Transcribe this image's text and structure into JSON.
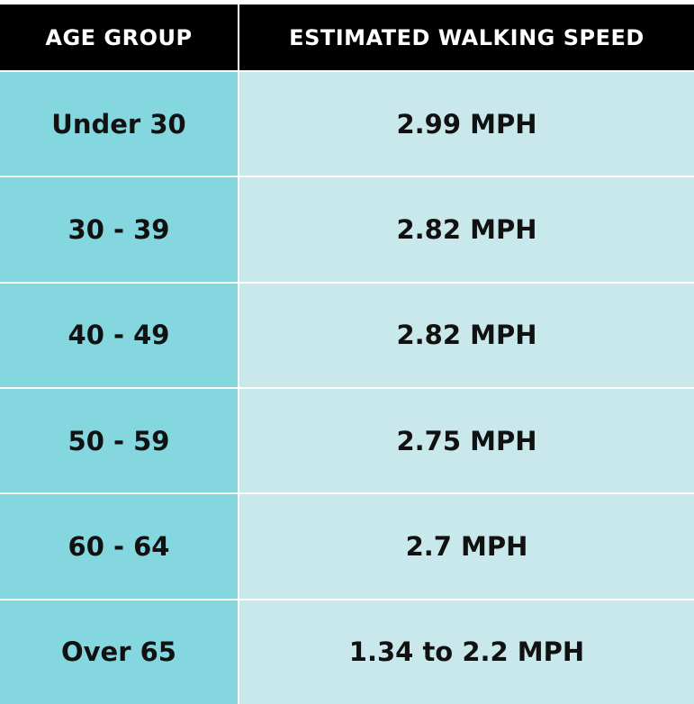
{
  "table": {
    "header": [
      "AGE GROUP",
      "ESTIMATED WALKING SPEED"
    ],
    "rows": [
      [
        "Under 30",
        "2.99 MPH"
      ],
      [
        "30 - 39",
        "2.82 MPH"
      ],
      [
        "40 - 49",
        "2.82 MPH"
      ],
      [
        "50 - 59",
        "2.75 MPH"
      ],
      [
        "60 - 64",
        "2.7 MPH"
      ],
      [
        "Over 65",
        "1.34 to 2.2 MPH"
      ]
    ]
  }
}
